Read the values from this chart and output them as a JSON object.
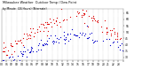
{
  "title": "Milwaukee Weather  Outdoor Temp / Dew Point",
  "subtitle": "by Minute  (24 Hours) (Alternate)",
  "bg_color": "#ffffff",
  "plot_bg_color": "#ffffff",
  "grid_color": "#aaaaaa",
  "temp_color": "#dd0000",
  "dew_color": "#0000cc",
  "ylim": [
    28,
    68
  ],
  "xlim": [
    0,
    1440
  ],
  "yticks": [
    30,
    35,
    40,
    45,
    50,
    55,
    60,
    65
  ],
  "seed": 7
}
